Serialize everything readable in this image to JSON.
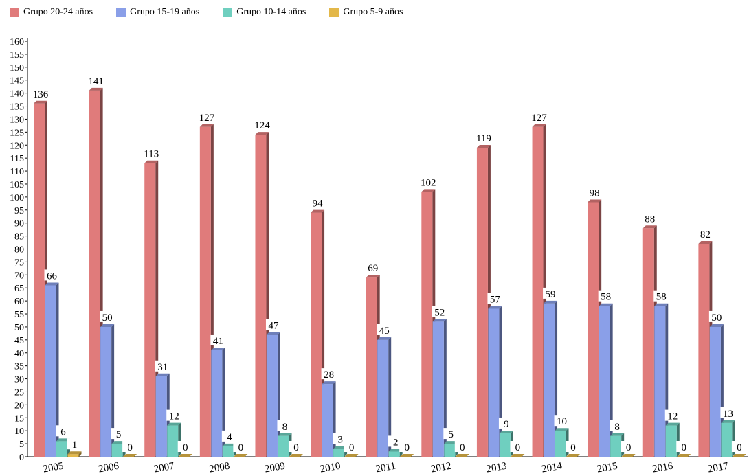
{
  "chart_data": {
    "type": "bar",
    "title": "",
    "xlabel": "",
    "ylabel": "",
    "ylim": [
      0,
      160
    ],
    "ytick_step": 5,
    "legend_position": "top-left",
    "grid": false,
    "categories": [
      "2005",
      "2006",
      "2007",
      "2008",
      "2009",
      "2010",
      "2011",
      "2012",
      "2013",
      "2014",
      "2015",
      "2016",
      "2017"
    ],
    "series": [
      {
        "name": "Grupo 20-24 años",
        "color": "#e07b7b",
        "values": [
          136,
          141,
          113,
          127,
          124,
          94,
          69,
          102,
          119,
          127,
          98,
          88,
          82
        ]
      },
      {
        "name": "Grupo 15-19 años",
        "color": "#8a9fe8",
        "values": [
          66,
          50,
          31,
          41,
          47,
          28,
          45,
          52,
          57,
          59,
          58,
          58,
          50
        ]
      },
      {
        "name": "Grupo 10-14 años",
        "color": "#6fcfbf",
        "values": [
          6,
          5,
          12,
          4,
          8,
          3,
          2,
          5,
          9,
          10,
          8,
          12,
          13
        ]
      },
      {
        "name": "Grupo 5-9 años",
        "color": "#e3b84a",
        "values": [
          1,
          0,
          0,
          0,
          0,
          0,
          0,
          0,
          0,
          0,
          0,
          0,
          0
        ]
      }
    ]
  }
}
